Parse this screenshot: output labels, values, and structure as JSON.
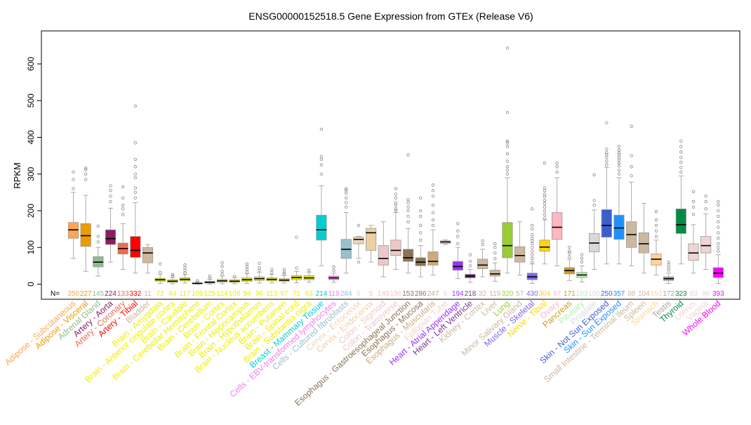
{
  "chart_data": {
    "type": "boxplot",
    "title": "ENSG00000152518.5 Gene Expression from GTEx (Release V6)",
    "ylabel": "RPKM",
    "xlabel": "",
    "ylim": [
      -20,
      665
    ],
    "yticks": [
      0,
      100,
      200,
      300,
      400,
      500,
      600
    ],
    "n_prefix": "N=",
    "grid": false,
    "legend": "none",
    "categories": [
      {
        "label": "Adipose - Subcutaneous",
        "n": "350",
        "color": "#FFA54F",
        "q1": 125,
        "med": 148,
        "q3": 168,
        "wlo": 70,
        "whi": 250,
        "out": [
          260,
          285,
          305
        ]
      },
      {
        "label": "Adipose - Visceral",
        "n": "227",
        "color": "#EE9A00",
        "q1": 103,
        "med": 132,
        "q3": 165,
        "wlo": 35,
        "whi": 242,
        "out": [
          285,
          300,
          312,
          316
        ]
      },
      {
        "label": "Adrenal Gland",
        "n": "145",
        "color": "#8FBC8F",
        "q1": 47,
        "med": 60,
        "q3": 75,
        "wlo": 22,
        "whi": 100,
        "out": [
          115,
          130,
          158
        ]
      },
      {
        "label": "Artery - Aorta",
        "n": "224",
        "color": "#8B1C62",
        "q1": 108,
        "med": 124,
        "q3": 148,
        "wlo": 60,
        "whi": 207,
        "out": [
          225,
          240,
          255,
          268
        ]
      },
      {
        "label": "Artery - Coronary",
        "n": "133",
        "color": "#EE6A50",
        "q1": 82,
        "med": 97,
        "q3": 112,
        "wlo": 40,
        "whi": 165,
        "out": [
          190,
          205,
          215,
          235,
          265
        ]
      },
      {
        "label": "Artery - Tibial",
        "n": "332",
        "color": "#FF0000",
        "q1": 73,
        "med": 92,
        "q3": 130,
        "wlo": 30,
        "whi": 222,
        "out": [
          235,
          250,
          262,
          290,
          300,
          320,
          340,
          385,
          485
        ]
      },
      {
        "label": "Bladder",
        "n": "11",
        "color": "#CDB79E",
        "q1": 58,
        "med": 85,
        "q3": 100,
        "wlo": 30,
        "whi": 108,
        "out": []
      },
      {
        "label": "Brain - Amygdala",
        "n": "72",
        "color": "#EEEE00",
        "q1": 8,
        "med": 12,
        "q3": 16,
        "wlo": 2,
        "whi": 26,
        "out": [
          32,
          55
        ]
      },
      {
        "label": "Brain - Anterior cingulate cortex",
        "n": "84",
        "color": "#EEEE00",
        "q1": 5,
        "med": 8,
        "q3": 12,
        "wlo": 1,
        "whi": 18,
        "out": [
          22,
          26
        ]
      },
      {
        "label": "Brain - Caudate",
        "n": "117",
        "color": "#EEEE00",
        "q1": 9,
        "med": 13,
        "q3": 17,
        "wlo": 3,
        "whi": 26,
        "out": [
          30,
          38,
          45,
          52
        ]
      },
      {
        "label": "Brain - Cerebellar Hemisphere",
        "n": "105",
        "color": "#EEEE00",
        "q1": 1,
        "med": 2,
        "q3": 4,
        "wlo": 0,
        "whi": 7,
        "out": [
          9
        ]
      },
      {
        "label": "Brain - Cerebellum",
        "n": "125",
        "color": "#EEEE00",
        "q1": 3,
        "med": 5,
        "q3": 8,
        "wlo": 0,
        "whi": 13,
        "out": [
          16,
          22
        ]
      },
      {
        "label": "Brain - Cortex",
        "n": "114",
        "color": "#EEEE00",
        "q1": 6,
        "med": 9,
        "q3": 13,
        "wlo": 1,
        "whi": 22,
        "out": [
          28,
          35,
          48,
          58
        ]
      },
      {
        "label": "Brain - Frontal Cortex",
        "n": "108",
        "color": "#EEEE00",
        "q1": 5,
        "med": 8,
        "q3": 12,
        "wlo": 1,
        "whi": 18,
        "out": [
          21
        ]
      },
      {
        "label": "Brain - Hippocampus",
        "n": "94",
        "color": "#EEEE00",
        "q1": 8,
        "med": 12,
        "q3": 17,
        "wlo": 2,
        "whi": 28,
        "out": [
          33,
          40,
          48,
          55
        ]
      },
      {
        "label": "Brain - Hypothalamus",
        "n": "96",
        "color": "#EEEE00",
        "q1": 10,
        "med": 15,
        "q3": 20,
        "wlo": 3,
        "whi": 32,
        "out": [
          38,
          45,
          57
        ]
      },
      {
        "label": "Brain - Nucleus accumbens",
        "n": "113",
        "color": "#EEEE00",
        "q1": 9,
        "med": 13,
        "q3": 17,
        "wlo": 3,
        "whi": 27,
        "out": [
          32,
          40
        ]
      },
      {
        "label": "Brain - Putamen",
        "n": "97",
        "color": "#EEEE00",
        "q1": 8,
        "med": 11,
        "q3": 15,
        "wlo": 3,
        "whi": 24,
        "out": [
          28,
          33,
          40
        ]
      },
      {
        "label": "Brain - Spinal cord",
        "n": "71",
        "color": "#EEEE00",
        "q1": 12,
        "med": 18,
        "q3": 23,
        "wlo": 4,
        "whi": 35,
        "out": [
          44,
          128
        ]
      },
      {
        "label": "Brain - Substantia nigra",
        "n": "63",
        "color": "#EEEE00",
        "q1": 12,
        "med": 17,
        "q3": 23,
        "wlo": 5,
        "whi": 33,
        "out": [
          38
        ]
      },
      {
        "label": "Breast - Mammary Tissue",
        "n": "214",
        "color": "#00CED1",
        "q1": 120,
        "med": 148,
        "q3": 188,
        "wlo": 50,
        "whi": 268,
        "out": [
          300,
          325,
          340,
          347,
          422
        ]
      },
      {
        "label": "Cells - EBV-transformed lymphocytes",
        "n": "118",
        "color": "#EE82EE",
        "q1": 12,
        "med": 17,
        "q3": 22,
        "wlo": 5,
        "whi": 30,
        "out": [
          37,
          47
        ]
      },
      {
        "label": "Cells - Cultured fibroblasts",
        "n": "284",
        "color": "#9AC0CD",
        "q1": 70,
        "med": 95,
        "q3": 122,
        "wlo": 30,
        "whi": 195,
        "out": [
          210,
          222,
          235,
          248,
          255,
          260
        ]
      },
      {
        "label": "Cervix - Ectocervix",
        "n": "6",
        "color": "#EED5B7",
        "q1": 110,
        "med": 122,
        "q3": 128,
        "wlo": 70,
        "whi": 130,
        "out": [
          60,
          160
        ]
      },
      {
        "label": "Cervix - Endocervix",
        "n": "5",
        "color": "#EECFA1",
        "q1": 92,
        "med": 140,
        "q3": 152,
        "wlo": 60,
        "whi": 160,
        "out": []
      },
      {
        "label": "Colon - Sigmoid",
        "n": "149",
        "color": "#EEC8C8",
        "q1": 52,
        "med": 70,
        "q3": 105,
        "wlo": 20,
        "whi": 170,
        "out": []
      },
      {
        "label": "Colon - Transverse",
        "n": "196",
        "color": "#EEC8C8",
        "q1": 78,
        "med": 92,
        "q3": 120,
        "wlo": 40,
        "whi": 195,
        "out": [
          200,
          205,
          215,
          222,
          235,
          245,
          260
        ]
      },
      {
        "label": "Esophagus - Gastroesophageal Junction",
        "n": "153",
        "color": "#8B7355",
        "q1": 62,
        "med": 72,
        "q3": 95,
        "wlo": 30,
        "whi": 152,
        "out": [
          170,
          185,
          200,
          210,
          222,
          230,
          352
        ]
      },
      {
        "label": "Esophagus - Mucosa",
        "n": "286",
        "color": "#8B7355",
        "q1": 50,
        "med": 60,
        "q3": 72,
        "wlo": 20,
        "whi": 105,
        "out": [
          120,
          140,
          160,
          185,
          200,
          235
        ]
      },
      {
        "label": "Esophagus - Muscularis",
        "n": "247",
        "color": "#CDAA7D",
        "q1": 52,
        "med": 62,
        "q3": 88,
        "wlo": 25,
        "whi": 148,
        "out": [
          160,
          175,
          195,
          215,
          240,
          255,
          270
        ]
      },
      {
        "label": "Fallopian Tube",
        "n": "6",
        "color": "#EED5D2",
        "q1": 111,
        "med": 115,
        "q3": 118,
        "wlo": 108,
        "whi": 121,
        "out": []
      },
      {
        "label": "Heart - Atrial Appendage",
        "n": "194",
        "color": "#9B30FF",
        "q1": 38,
        "med": 48,
        "q3": 62,
        "wlo": 15,
        "whi": 100,
        "out": [
          110,
          130,
          145,
          165
        ]
      },
      {
        "label": "Heart - Left Ventricle",
        "n": "218",
        "color": "#7A378B",
        "q1": 17,
        "med": 22,
        "q3": 27,
        "wlo": 5,
        "whi": 40,
        "out": [
          50,
          62,
          80
        ]
      },
      {
        "label": "Kidney - Cortex",
        "n": "32",
        "color": "#CDB79E",
        "q1": 42,
        "med": 52,
        "q3": 68,
        "wlo": 20,
        "whi": 95,
        "out": [
          108,
          118
        ]
      },
      {
        "label": "Liver",
        "n": "119",
        "color": "#CDB79E",
        "q1": 22,
        "med": 28,
        "q3": 38,
        "wlo": 8,
        "whi": 58,
        "out": [
          70,
          85,
          100,
          110
        ]
      },
      {
        "label": "Lung",
        "n": "320",
        "color": "#9ACD32",
        "q1": 72,
        "med": 105,
        "q3": 168,
        "wlo": 30,
        "whi": 290,
        "out": [
          300,
          310,
          320,
          335,
          355,
          375,
          385,
          390,
          468,
          643
        ]
      },
      {
        "label": "Minor Salivary Gland",
        "n": "57",
        "color": "#CDB79E",
        "q1": 60,
        "med": 78,
        "q3": 102,
        "wlo": 25,
        "whi": 170,
        "out": []
      },
      {
        "label": "Muscle - Skeletal",
        "n": "430",
        "color": "#7A67EE",
        "q1": 12,
        "med": 20,
        "q3": 30,
        "wlo": 2,
        "whi": 55,
        "out": [
          60,
          70,
          80,
          90,
          100,
          110,
          118,
          125,
          135,
          150,
          160,
          205
        ]
      },
      {
        "label": "Nerve - Tibial",
        "n": "304",
        "color": "#FFD700",
        "q1": 90,
        "med": 101,
        "q3": 120,
        "wlo": 55,
        "whi": 175,
        "out": [
          180,
          190,
          200,
          210,
          220,
          228,
          238,
          245,
          255,
          262,
          330
        ]
      },
      {
        "label": "Ovary",
        "n": "97",
        "color": "#FFB6C1",
        "q1": 122,
        "med": 155,
        "q3": 195,
        "wlo": 50,
        "whi": 290,
        "out": [
          305,
          320,
          330
        ]
      },
      {
        "label": "Pancreas",
        "n": "171",
        "color": "#CD9B1D",
        "q1": 28,
        "med": 37,
        "q3": 45,
        "wlo": 10,
        "whi": 68,
        "out": [
          75,
          85,
          90,
          100
        ]
      },
      {
        "label": "Pituitary",
        "n": "103",
        "color": "#B4EEB4",
        "q1": 18,
        "med": 25,
        "q3": 32,
        "wlo": 6,
        "whi": 50,
        "out": [
          60,
          70,
          80
        ]
      },
      {
        "label": "Prostate",
        "n": "106",
        "color": "#D9D9D9",
        "q1": 88,
        "med": 112,
        "q3": 138,
        "wlo": 40,
        "whi": 202,
        "out": [
          215,
          228,
          298
        ]
      },
      {
        "label": "Skin - Not Sun Exposed",
        "n": "250",
        "color": "#3A5FCD",
        "q1": 128,
        "med": 160,
        "q3": 203,
        "wlo": 55,
        "whi": 318,
        "out": [
          325,
          335,
          345,
          352,
          358,
          368,
          440
        ]
      },
      {
        "label": "Skin - Sun Exposed",
        "n": "357",
        "color": "#1E90FF",
        "q1": 122,
        "med": 153,
        "q3": 188,
        "wlo": 55,
        "whi": 290,
        "out": [
          300,
          310,
          322,
          330,
          338,
          345,
          352,
          358,
          365,
          375
        ]
      },
      {
        "label": "Small Intestine - Terminal Ileum",
        "n": "88",
        "color": "#CDB79E",
        "q1": 100,
        "med": 135,
        "q3": 170,
        "wlo": 50,
        "whi": 278,
        "out": [
          295,
          320,
          350,
          430
        ]
      },
      {
        "label": "Spleen",
        "n": "104",
        "color": "#CDB79E",
        "q1": 85,
        "med": 110,
        "q3": 140,
        "wlo": 30,
        "whi": 220,
        "out": []
      },
      {
        "label": "Stomach",
        "n": "193",
        "color": "#FFD39B",
        "q1": 52,
        "med": 68,
        "q3": 82,
        "wlo": 25,
        "whi": 120,
        "out": [
          130,
          145,
          160,
          175,
          198
        ]
      },
      {
        "label": "Testis",
        "n": "172",
        "color": "#A6A6A6",
        "q1": 10,
        "med": 15,
        "q3": 20,
        "wlo": 2,
        "whi": 30,
        "out": [
          38,
          45,
          52,
          60
        ]
      },
      {
        "label": "Thyroid",
        "n": "323",
        "color": "#008B45",
        "q1": 138,
        "med": 162,
        "q3": 205,
        "wlo": 55,
        "whi": 295,
        "out": [
          305,
          318,
          332,
          345,
          360,
          375,
          390
        ]
      },
      {
        "label": "Uterus",
        "n": "83",
        "color": "#EED5D2",
        "q1": 65,
        "med": 85,
        "q3": 110,
        "wlo": 30,
        "whi": 162,
        "out": [
          190,
          210,
          225,
          252
        ]
      },
      {
        "label": "Vagina",
        "n": "96",
        "color": "#EED5D2",
        "q1": 85,
        "med": 105,
        "q3": 130,
        "wlo": 40,
        "whi": 192,
        "out": [
          205,
          225,
          240
        ]
      },
      {
        "label": "Whole Blood",
        "n": "393",
        "color": "#FF00FF",
        "q1": 18,
        "med": 30,
        "q3": 45,
        "wlo": 2,
        "whi": 80,
        "out": [
          90,
          100,
          110,
          125,
          140,
          155,
          170,
          185,
          200,
          215,
          225
        ]
      }
    ]
  }
}
